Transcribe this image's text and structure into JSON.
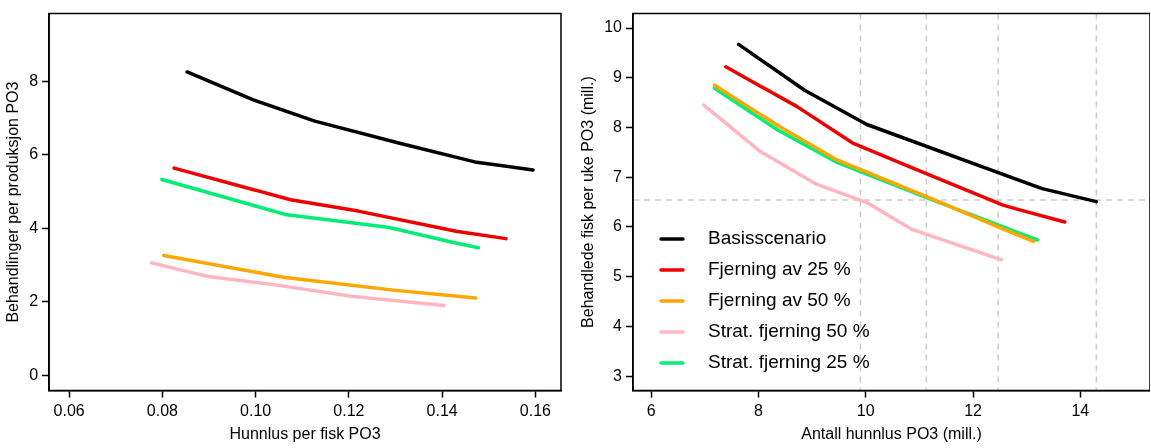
{
  "chart_data": [
    {
      "type": "line",
      "xlabel": "Hunnlus per fisk PO3",
      "ylabel": "Behandlinger per produksjon PO3",
      "xlim": [
        0.0557,
        0.1655
      ],
      "ylim": [
        -0.42,
        9.85
      ],
      "xticks": [
        {
          "value": 0.06,
          "label": "0.06"
        },
        {
          "value": 0.08,
          "label": "0.08"
        },
        {
          "value": 0.1,
          "label": "0.10"
        },
        {
          "value": 0.12,
          "label": "0.12"
        },
        {
          "value": 0.14,
          "label": "0.14"
        },
        {
          "value": 0.16,
          "label": "0.16"
        }
      ],
      "yticks": [
        0,
        2,
        4,
        6,
        8
      ],
      "grid": false,
      "legend": false,
      "marker": "none",
      "line_style": "solid",
      "series": [
        {
          "color": "#000000",
          "x": [
            0.0853,
            0.0995,
            0.1127,
            0.1309,
            0.147,
            0.1595
          ],
          "values": [
            8.26,
            7.5,
            6.92,
            6.32,
            5.81,
            5.59
          ]
        },
        {
          "color": "#ee0000",
          "x": [
            0.0825,
            0.1075,
            0.122,
            0.143,
            0.1537
          ],
          "values": [
            5.64,
            4.78,
            4.47,
            3.92,
            3.72
          ]
        },
        {
          "color": "#ffa500",
          "x": [
            0.0803,
            0.1063,
            0.13,
            0.1472
          ],
          "values": [
            3.26,
            2.66,
            2.31,
            2.1
          ]
        },
        {
          "color": "#ffb6c1",
          "x": [
            0.0777,
            0.0898,
            0.1043,
            0.1205,
            0.1404
          ],
          "values": [
            3.06,
            2.69,
            2.46,
            2.15,
            1.9
          ]
        },
        {
          "color": "#00ee76",
          "x": [
            0.0799,
            0.1063,
            0.1284,
            0.1422,
            0.1478
          ],
          "values": [
            5.33,
            4.38,
            4.03,
            3.62,
            3.47
          ]
        }
      ]
    },
    {
      "type": "line",
      "xlabel": "Antall hunnlus PO3 (mill.)",
      "ylabel": "Behandlede fisk per uke PO3 (mill.)",
      "xlim": [
        5.66,
        15.3
      ],
      "ylim": [
        2.71,
        10.29
      ],
      "xticks": [
        6,
        8,
        10,
        12,
        14
      ],
      "yticks": [
        3,
        4,
        5,
        6,
        7,
        8,
        9,
        10
      ],
      "grid": false,
      "legend": "bottom left",
      "marker": "none",
      "line_style": "solid",
      "ref_lines": [
        {
          "axis": "x",
          "value": 9.9,
          "color": "#cccccc",
          "line_style": "dashed"
        },
        {
          "axis": "x",
          "value": 11.13,
          "color": "#cccccc",
          "line_style": "dashed"
        },
        {
          "axis": "x",
          "value": 12.47,
          "color": "#cccccc",
          "line_style": "dashed"
        },
        {
          "axis": "x",
          "value": 14.3,
          "color": "#cccccc",
          "line_style": "dashed"
        },
        {
          "axis": "y",
          "value": 6.54,
          "color": "#cccccc",
          "line_style": "dashed"
        }
      ],
      "series": [
        {
          "name": "Basisscenario",
          "color": "#000000",
          "x": [
            7.63,
            8.86,
            10.02,
            13.29,
            14.3
          ],
          "values": [
            9.67,
            8.75,
            8.06,
            6.77,
            6.51
          ]
        },
        {
          "name": "Fjerning av 25 %",
          "color": "#ee0000",
          "x": [
            7.39,
            8.72,
            9.77,
            10.89,
            12.56,
            12.82,
            13.71
          ],
          "values": [
            9.22,
            8.42,
            7.68,
            7.18,
            6.44,
            6.36,
            6.1
          ]
        },
        {
          "name": "Fjerning av 50 %",
          "color": "#ffa500",
          "x": [
            7.18,
            8.36,
            9.44,
            11.18,
            12.49,
            13.13
          ],
          "values": [
            8.85,
            8.04,
            7.36,
            6.59,
            5.99,
            5.71
          ]
        },
        {
          "name": "Strat. fjerning 50 %",
          "color": "#ffb6c1",
          "x": [
            6.98,
            8.03,
            9.08,
            10.02,
            10.86,
            12.53
          ],
          "values": [
            8.45,
            7.52,
            6.86,
            6.49,
            5.95,
            5.34
          ]
        },
        {
          "name": "Strat. fjerning 25 %",
          "color": "#00ee76",
          "x": [
            7.18,
            8.36,
            9.44,
            11.18,
            12.49,
            13.2
          ],
          "values": [
            8.79,
            7.95,
            7.31,
            6.57,
            6.03,
            5.74
          ]
        }
      ]
    }
  ]
}
